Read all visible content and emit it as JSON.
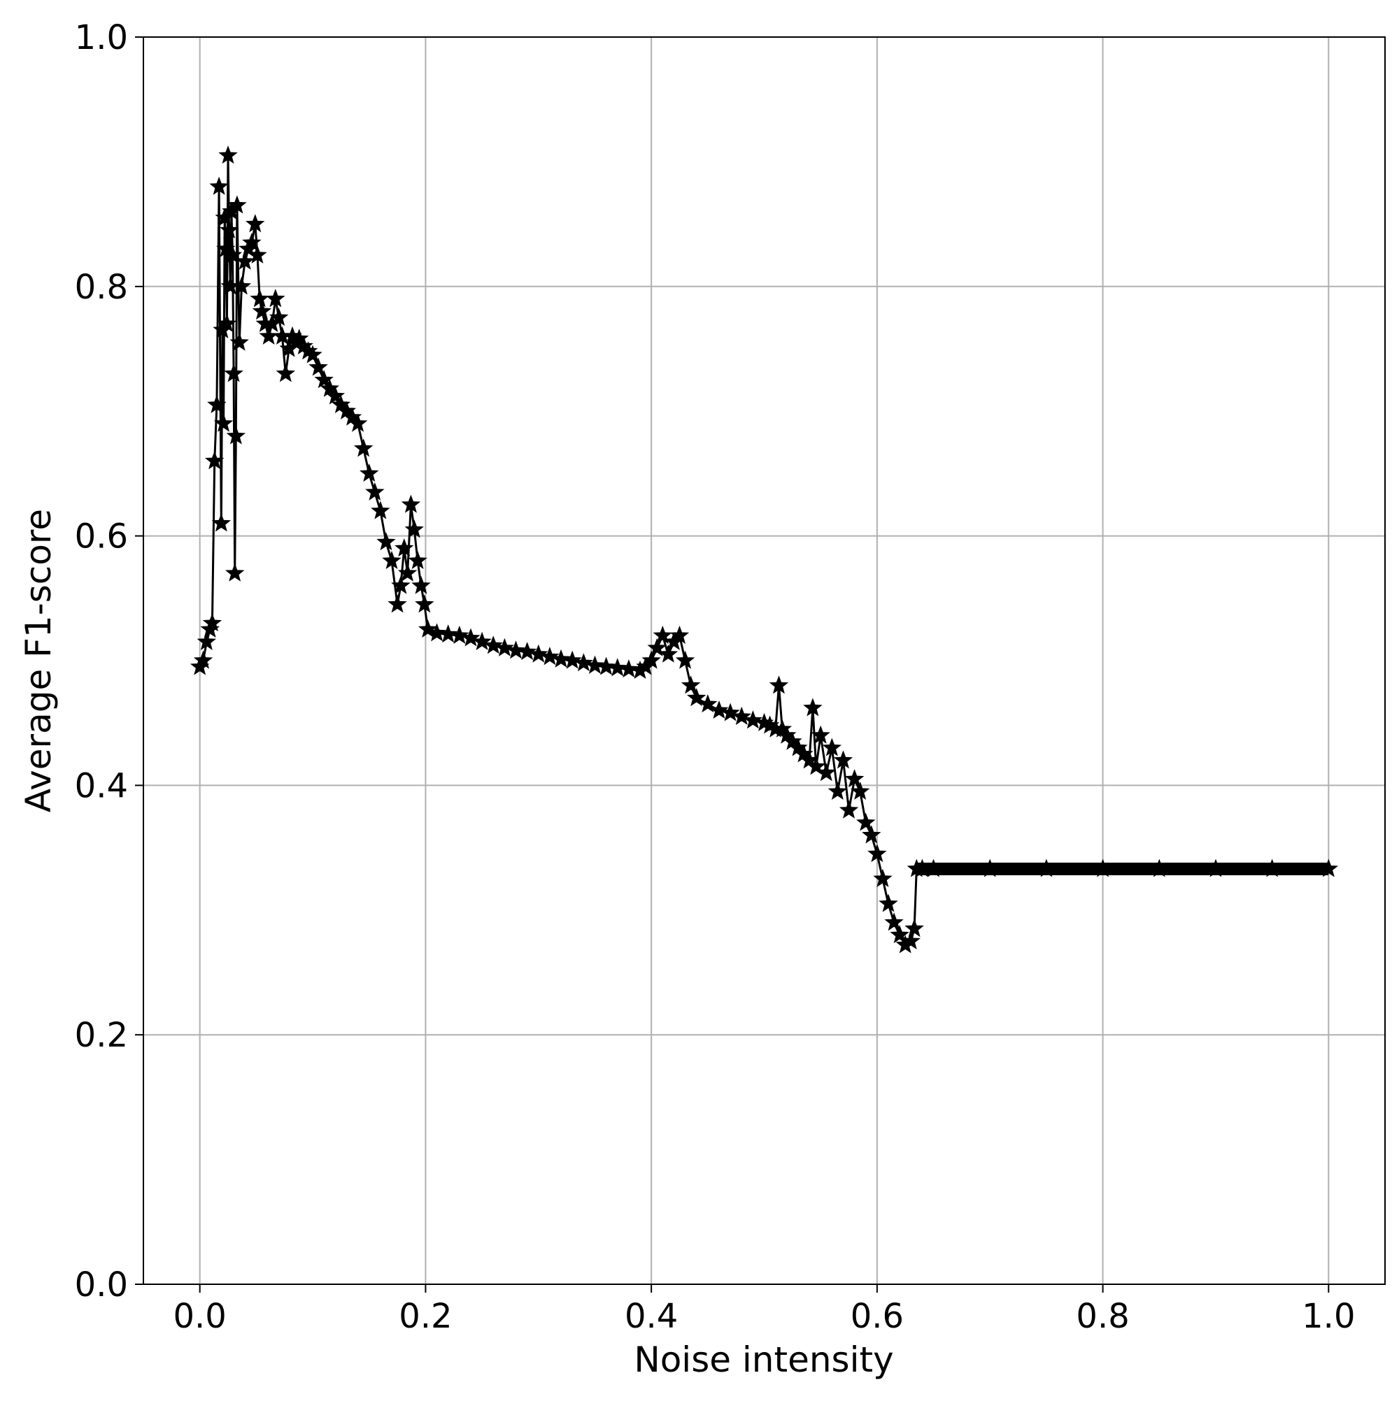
{
  "chart_data": {
    "type": "line",
    "title": "",
    "xlabel": "Noise intensity",
    "ylabel": "Average F1-score",
    "xlim": [
      -0.05,
      1.05
    ],
    "ylim": [
      0.0,
      1.0
    ],
    "xticks": [
      "0.0",
      "0.2",
      "0.4",
      "0.6",
      "0.8",
      "1.0"
    ],
    "yticks": [
      "0.0",
      "0.2",
      "0.4",
      "0.6",
      "0.8",
      "1.0"
    ],
    "grid": true,
    "legend": "none",
    "marker": "star",
    "color": "#000000",
    "series": [
      {
        "x": [
          0.0,
          0.003,
          0.006,
          0.009,
          0.011,
          0.013,
          0.015,
          0.017,
          0.019,
          0.02,
          0.021,
          0.022,
          0.023,
          0.024,
          0.025,
          0.026,
          0.027,
          0.028,
          0.029,
          0.03,
          0.031,
          0.032,
          0.033,
          0.035,
          0.037,
          0.04,
          0.043,
          0.046,
          0.049,
          0.051,
          0.053,
          0.055,
          0.058,
          0.061,
          0.064,
          0.067,
          0.07,
          0.073,
          0.076,
          0.079,
          0.082,
          0.085,
          0.088,
          0.092,
          0.096,
          0.1,
          0.105,
          0.11,
          0.115,
          0.12,
          0.125,
          0.13,
          0.135,
          0.14,
          0.145,
          0.15,
          0.155,
          0.16,
          0.165,
          0.17,
          0.175,
          0.178,
          0.181,
          0.184,
          0.187,
          0.19,
          0.193,
          0.196,
          0.199,
          0.202,
          0.21,
          0.22,
          0.23,
          0.24,
          0.25,
          0.26,
          0.27,
          0.28,
          0.29,
          0.3,
          0.31,
          0.32,
          0.33,
          0.34,
          0.35,
          0.36,
          0.37,
          0.38,
          0.39,
          0.395,
          0.4,
          0.405,
          0.41,
          0.415,
          0.42,
          0.425,
          0.43,
          0.435,
          0.44,
          0.45,
          0.46,
          0.47,
          0.48,
          0.49,
          0.5,
          0.505,
          0.51,
          0.513,
          0.516,
          0.52,
          0.525,
          0.53,
          0.535,
          0.54,
          0.543,
          0.546,
          0.55,
          0.555,
          0.56,
          0.565,
          0.57,
          0.575,
          0.58,
          0.585,
          0.59,
          0.595,
          0.6,
          0.605,
          0.61,
          0.615,
          0.62,
          0.625,
          0.63,
          0.633,
          0.635,
          0.64,
          0.65,
          0.7,
          0.75,
          0.8,
          0.85,
          0.9,
          0.95,
          1.0
        ],
        "y": [
          0.495,
          0.5,
          0.515,
          0.525,
          0.53,
          0.66,
          0.705,
          0.88,
          0.61,
          0.765,
          0.69,
          0.855,
          0.83,
          0.77,
          0.905,
          0.845,
          0.8,
          0.86,
          0.825,
          0.73,
          0.57,
          0.68,
          0.865,
          0.755,
          0.8,
          0.82,
          0.83,
          0.835,
          0.85,
          0.825,
          0.79,
          0.78,
          0.77,
          0.76,
          0.77,
          0.79,
          0.775,
          0.76,
          0.73,
          0.75,
          0.76,
          0.755,
          0.758,
          0.752,
          0.748,
          0.745,
          0.735,
          0.725,
          0.718,
          0.712,
          0.705,
          0.7,
          0.695,
          0.69,
          0.67,
          0.65,
          0.635,
          0.62,
          0.595,
          0.58,
          0.545,
          0.56,
          0.59,
          0.57,
          0.625,
          0.605,
          0.58,
          0.56,
          0.545,
          0.525,
          0.522,
          0.521,
          0.52,
          0.518,
          0.515,
          0.512,
          0.51,
          0.508,
          0.507,
          0.505,
          0.503,
          0.501,
          0.5,
          0.498,
          0.496,
          0.495,
          0.494,
          0.493,
          0.492,
          0.495,
          0.5,
          0.51,
          0.52,
          0.505,
          0.515,
          0.52,
          0.5,
          0.48,
          0.47,
          0.465,
          0.46,
          0.458,
          0.455,
          0.452,
          0.45,
          0.448,
          0.445,
          0.48,
          0.445,
          0.44,
          0.435,
          0.43,
          0.425,
          0.42,
          0.462,
          0.415,
          0.44,
          0.41,
          0.43,
          0.395,
          0.42,
          0.38,
          0.405,
          0.395,
          0.37,
          0.36,
          0.345,
          0.325,
          0.305,
          0.29,
          0.28,
          0.272,
          0.275,
          0.285,
          0.333,
          0.333,
          0.333,
          0.333,
          0.333,
          0.333,
          0.333,
          0.333,
          0.333,
          0.333
        ]
      }
    ]
  }
}
